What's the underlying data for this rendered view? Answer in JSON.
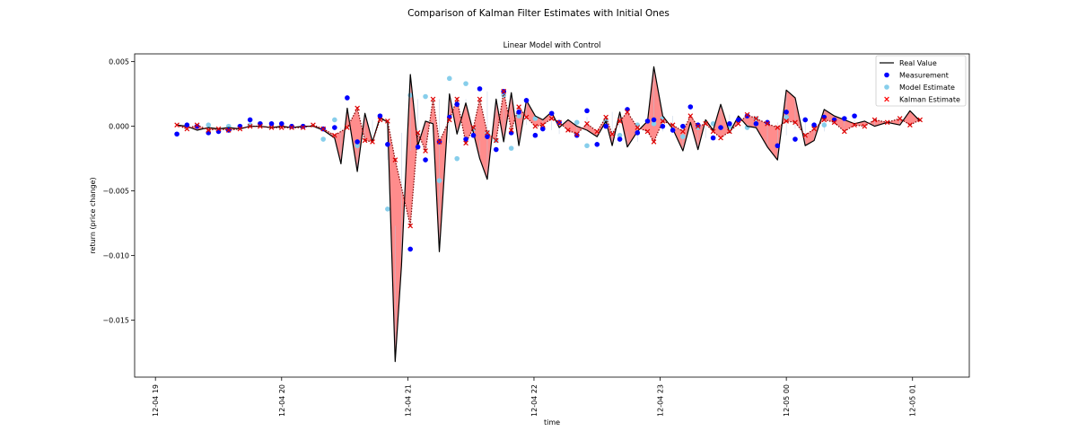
{
  "chart_data": {
    "type": "line",
    "title": "Comparison of Kalman Filter Estimates with Initial Ones",
    "subtitle": "Linear Model with Control",
    "xlabel": "time",
    "ylabel": "return (price change)",
    "xlim": [
      -0.165,
      6.45
    ],
    "ylim": [
      -0.0194,
      0.0056
    ],
    "x_ticks": [
      {
        "label": "12-04 19",
        "value": 0
      },
      {
        "label": "12-04 20",
        "value": 1
      },
      {
        "label": "12-04 21",
        "value": 2
      },
      {
        "label": "12-04 22",
        "value": 3
      },
      {
        "label": "12-04 23",
        "value": 4
      },
      {
        "label": "12-05 00",
        "value": 5
      },
      {
        "label": "12-05 01",
        "value": 6
      }
    ],
    "y_ticks": [
      {
        "label": "0.005",
        "value": 0.005
      },
      {
        "label": "0.000",
        "value": 0.0
      },
      {
        "label": "−0.005",
        "value": -0.005
      },
      {
        "label": "−0.010",
        "value": -0.01
      },
      {
        "label": "−0.015",
        "value": -0.015
      }
    ],
    "legend": {
      "position": "top-right",
      "entries": [
        {
          "label": "Real Value",
          "kind": "line",
          "color": "#000000"
        },
        {
          "label": "Measurement",
          "kind": "dot",
          "color": "#0000ff"
        },
        {
          "label": "Model Estimate",
          "kind": "dot",
          "color": "#87ceeb"
        },
        {
          "label": "Kalman Estimate",
          "kind": "x",
          "color": "#ff0000"
        }
      ]
    },
    "colors": {
      "real": "#000000",
      "measurement": "#0000ff",
      "model": "#87ceeb",
      "kalman": "#e00000",
      "kalman_line": "#7a0000",
      "fill": "#ff7f7f"
    },
    "series": [
      {
        "name": "Real Value",
        "points": [
          [
            0.17,
            0.0001
          ],
          [
            0.25,
            0.0
          ],
          [
            0.33,
            -0.0003
          ],
          [
            0.42,
            -0.0001
          ],
          [
            0.5,
            -0.0002
          ],
          [
            0.58,
            -0.0001
          ],
          [
            0.67,
            -0.0002
          ],
          [
            0.75,
            0.0
          ],
          [
            0.83,
            0.0
          ],
          [
            0.92,
            -0.0001
          ],
          [
            1.0,
            0.0
          ],
          [
            1.08,
            -0.0001
          ],
          [
            1.17,
            0.0
          ],
          [
            1.25,
            0.0
          ],
          [
            1.33,
            -0.0003
          ],
          [
            1.42,
            -0.0009
          ],
          [
            1.47,
            -0.0029
          ],
          [
            1.52,
            0.0014
          ],
          [
            1.6,
            -0.0035
          ],
          [
            1.66,
            0.001
          ],
          [
            1.72,
            -0.0012
          ],
          [
            1.78,
            0.0007
          ],
          [
            1.84,
            0.0003
          ],
          [
            1.9,
            -0.0182
          ],
          [
            1.95,
            -0.0108
          ],
          [
            2.02,
            0.004
          ],
          [
            2.08,
            -0.0015
          ],
          [
            2.14,
            0.0004
          ],
          [
            2.2,
            0.0002
          ],
          [
            2.25,
            -0.0097
          ],
          [
            2.33,
            0.0025
          ],
          [
            2.39,
            -0.0006
          ],
          [
            2.46,
            0.0018
          ],
          [
            2.52,
            -0.0005
          ],
          [
            2.57,
            -0.0025
          ],
          [
            2.63,
            -0.0041
          ],
          [
            2.7,
            0.0021
          ],
          [
            2.76,
            -0.0012
          ],
          [
            2.82,
            0.0026
          ],
          [
            2.88,
            -0.0015
          ],
          [
            2.94,
            0.002
          ],
          [
            3.01,
            0.0008
          ],
          [
            3.07,
            0.0005
          ],
          [
            3.14,
            0.0011
          ],
          [
            3.2,
            -0.0001
          ],
          [
            3.27,
            0.0005
          ],
          [
            3.34,
            0.0
          ],
          [
            3.42,
            -0.0003
          ],
          [
            3.5,
            -0.0008
          ],
          [
            3.57,
            0.0004
          ],
          [
            3.62,
            -0.0015
          ],
          [
            3.68,
            0.0011
          ],
          [
            3.74,
            -0.0016
          ],
          [
            3.82,
            -0.0004
          ],
          [
            3.9,
            0.0004
          ],
          [
            3.95,
            0.0046
          ],
          [
            4.02,
            0.0008
          ],
          [
            4.1,
            -0.0002
          ],
          [
            4.18,
            -0.0019
          ],
          [
            4.24,
            0.0003
          ],
          [
            4.3,
            -0.0018
          ],
          [
            4.36,
            0.0005
          ],
          [
            4.42,
            -0.0003
          ],
          [
            4.48,
            0.0017
          ],
          [
            4.55,
            -0.0005
          ],
          [
            4.62,
            0.0008
          ],
          [
            4.69,
            0.0
          ],
          [
            4.76,
            -0.0001
          ],
          [
            4.85,
            -0.0016
          ],
          [
            4.93,
            -0.0026
          ],
          [
            5.0,
            0.0028
          ],
          [
            5.07,
            0.0022
          ],
          [
            5.15,
            -0.0015
          ],
          [
            5.22,
            -0.0011
          ],
          [
            5.3,
            0.0013
          ],
          [
            5.38,
            0.0008
          ],
          [
            5.46,
            0.0005
          ],
          [
            5.54,
            0.0002
          ],
          [
            5.62,
            0.0004
          ],
          [
            5.7,
            0.0
          ],
          [
            5.8,
            0.0003
          ],
          [
            5.9,
            0.0001
          ],
          [
            5.98,
            0.0012
          ],
          [
            6.06,
            0.0004
          ]
        ]
      },
      {
        "name": "Kalman Estimate",
        "points": [
          [
            0.17,
            0.0001
          ],
          [
            0.25,
            -0.0002
          ],
          [
            0.33,
            0.0001
          ],
          [
            0.42,
            -0.0003
          ],
          [
            0.5,
            -0.0002
          ],
          [
            0.58,
            -0.0003
          ],
          [
            0.67,
            -0.0002
          ],
          [
            0.75,
            0.0
          ],
          [
            0.83,
            0.0
          ],
          [
            0.92,
            -0.0001
          ],
          [
            1.0,
            -0.0001
          ],
          [
            1.08,
            -0.0001
          ],
          [
            1.17,
            -0.0001
          ],
          [
            1.25,
            0.0001
          ],
          [
            1.33,
            -0.0002
          ],
          [
            1.42,
            -0.0007
          ],
          [
            1.52,
            -0.0001
          ],
          [
            1.6,
            0.0014
          ],
          [
            1.66,
            -0.0011
          ],
          [
            1.72,
            -0.0012
          ],
          [
            1.78,
            0.0005
          ],
          [
            1.84,
            0.0004
          ],
          [
            1.9,
            -0.0026
          ],
          [
            2.02,
            -0.0077
          ],
          [
            2.08,
            -0.0005
          ],
          [
            2.14,
            -0.0019
          ],
          [
            2.2,
            0.0021
          ],
          [
            2.25,
            -0.0012
          ],
          [
            2.33,
            0.0005
          ],
          [
            2.39,
            0.0021
          ],
          [
            2.46,
            -0.0013
          ],
          [
            2.52,
            -0.0001
          ],
          [
            2.57,
            0.0021
          ],
          [
            2.63,
            -0.0005
          ],
          [
            2.7,
            -0.0011
          ],
          [
            2.76,
            0.0027
          ],
          [
            2.82,
            -0.0003
          ],
          [
            2.88,
            0.0015
          ],
          [
            2.94,
            0.0007
          ],
          [
            3.01,
            0.0
          ],
          [
            3.07,
            0.0001
          ],
          [
            3.14,
            0.0006
          ],
          [
            3.2,
            0.0003
          ],
          [
            3.27,
            -0.0003
          ],
          [
            3.34,
            -0.0006
          ],
          [
            3.42,
            0.0002
          ],
          [
            3.5,
            -0.0004
          ],
          [
            3.57,
            0.0007
          ],
          [
            3.62,
            -0.0006
          ],
          [
            3.68,
            0.0004
          ],
          [
            3.74,
            0.0011
          ],
          [
            3.82,
            -0.0001
          ],
          [
            3.9,
            -0.0004
          ],
          [
            3.95,
            -0.0012
          ],
          [
            4.02,
            0.0004
          ],
          [
            4.1,
            0.0001
          ],
          [
            4.18,
            -0.0004
          ],
          [
            4.24,
            0.0008
          ],
          [
            4.3,
            0.0
          ],
          [
            4.36,
            0.0002
          ],
          [
            4.42,
            -0.0004
          ],
          [
            4.48,
            -0.0009
          ],
          [
            4.55,
            -0.0004
          ],
          [
            4.62,
            0.0002
          ],
          [
            4.69,
            0.0009
          ],
          [
            4.76,
            0.0006
          ],
          [
            4.85,
            0.0002
          ],
          [
            4.93,
            -0.0001
          ],
          [
            5.0,
            0.0004
          ],
          [
            5.07,
            0.0003
          ],
          [
            5.15,
            -0.0007
          ],
          [
            5.22,
            -0.0002
          ],
          [
            5.3,
            0.0005
          ],
          [
            5.38,
            0.0003
          ],
          [
            5.46,
            -0.0004
          ],
          [
            5.54,
            0.0001
          ],
          [
            5.62,
            0.0
          ],
          [
            5.7,
            0.0005
          ],
          [
            5.8,
            0.0003
          ],
          [
            5.9,
            0.0006
          ],
          [
            5.98,
            0.0001
          ],
          [
            6.06,
            0.0005
          ]
        ]
      },
      {
        "name": "Measurement",
        "points": [
          [
            0.17,
            -0.0006
          ],
          [
            0.25,
            0.0001
          ],
          [
            0.33,
            0.0
          ],
          [
            0.42,
            -0.0005
          ],
          [
            0.5,
            -0.0004
          ],
          [
            0.58,
            -0.0003
          ],
          [
            0.67,
            0.0
          ],
          [
            0.75,
            0.0005
          ],
          [
            0.83,
            0.0002
          ],
          [
            0.92,
            0.0002
          ],
          [
            1.0,
            0.0002
          ],
          [
            1.08,
            0.0
          ],
          [
            1.17,
            0.0
          ],
          [
            1.33,
            -0.0002
          ],
          [
            1.42,
            -0.0001
          ],
          [
            1.52,
            0.0022
          ],
          [
            1.6,
            -0.0012
          ],
          [
            1.78,
            0.0008
          ],
          [
            1.84,
            -0.0014
          ],
          [
            2.02,
            -0.0095
          ],
          [
            2.08,
            -0.0016
          ],
          [
            2.14,
            -0.0026
          ],
          [
            2.25,
            -0.0012
          ],
          [
            2.33,
            0.0007
          ],
          [
            2.39,
            0.0017
          ],
          [
            2.46,
            -0.001
          ],
          [
            2.52,
            -0.0007
          ],
          [
            2.57,
            0.0029
          ],
          [
            2.63,
            -0.0008
          ],
          [
            2.7,
            -0.0018
          ],
          [
            2.76,
            0.0027
          ],
          [
            2.82,
            -0.0005
          ],
          [
            2.88,
            0.0011
          ],
          [
            2.94,
            0.002
          ],
          [
            3.01,
            -0.0007
          ],
          [
            3.07,
            -0.0002
          ],
          [
            3.14,
            0.001
          ],
          [
            3.2,
            0.0003
          ],
          [
            3.34,
            -0.0007
          ],
          [
            3.42,
            0.0012
          ],
          [
            3.5,
            -0.0014
          ],
          [
            3.57,
            0.0
          ],
          [
            3.68,
            -0.001
          ],
          [
            3.74,
            0.0013
          ],
          [
            3.82,
            -0.0005
          ],
          [
            3.9,
            0.0004
          ],
          [
            3.95,
            0.0005
          ],
          [
            4.02,
            0.0
          ],
          [
            4.1,
            -0.0003
          ],
          [
            4.18,
            0.0
          ],
          [
            4.24,
            0.0015
          ],
          [
            4.3,
            0.0001
          ],
          [
            4.42,
            -0.0009
          ],
          [
            4.48,
            -0.0001
          ],
          [
            4.55,
            0.0002
          ],
          [
            4.62,
            0.0005
          ],
          [
            4.69,
            0.0008
          ],
          [
            4.76,
            0.0002
          ],
          [
            4.85,
            0.0003
          ],
          [
            4.93,
            -0.0015
          ],
          [
            5.0,
            0.0011
          ],
          [
            5.07,
            -0.001
          ],
          [
            5.15,
            0.0005
          ],
          [
            5.22,
            0.0001
          ],
          [
            5.3,
            0.0007
          ],
          [
            5.38,
            0.0005
          ],
          [
            5.46,
            0.0006
          ],
          [
            5.54,
            0.0008
          ]
        ]
      },
      {
        "name": "Model Estimate",
        "points": [
          [
            0.42,
            0.0001
          ],
          [
            0.58,
            0.0
          ],
          [
            0.75,
            0.0001
          ],
          [
            1.17,
            0.0
          ],
          [
            1.33,
            -0.001
          ],
          [
            1.42,
            0.0005
          ],
          [
            1.6,
            -0.0015
          ],
          [
            1.84,
            -0.0064
          ],
          [
            2.02,
            0.0024
          ],
          [
            2.14,
            0.0023
          ],
          [
            2.25,
            -0.0042
          ],
          [
            2.33,
            0.0037
          ],
          [
            2.39,
            -0.0025
          ],
          [
            2.46,
            0.0033
          ],
          [
            2.52,
            -0.0002
          ],
          [
            2.63,
            -0.0005
          ],
          [
            2.7,
            -0.0011
          ],
          [
            2.76,
            0.0024
          ],
          [
            2.82,
            -0.0017
          ],
          [
            2.88,
            0.0008
          ],
          [
            3.01,
            0.0006
          ],
          [
            3.34,
            0.0003
          ],
          [
            3.42,
            -0.0015
          ],
          [
            3.57,
            0.0004
          ],
          [
            3.68,
            -0.0007
          ],
          [
            3.82,
            0.0001
          ],
          [
            3.95,
            0.0002
          ],
          [
            4.02,
            0.0006
          ],
          [
            4.18,
            -0.0008
          ],
          [
            4.3,
            -0.0001
          ],
          [
            4.42,
            0.0002
          ],
          [
            4.55,
            0.0
          ],
          [
            4.69,
            -0.0001
          ],
          [
            4.76,
            0.0006
          ],
          [
            5.0,
            0.0007
          ],
          [
            5.15,
            0.0005
          ],
          [
            5.3,
            0.0001
          ]
        ]
      }
    ]
  }
}
